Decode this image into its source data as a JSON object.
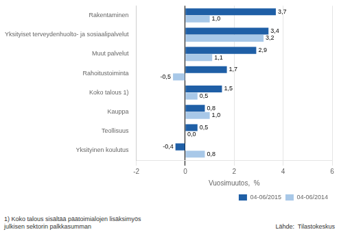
{
  "chart_data": {
    "type": "bar",
    "orientation": "horizontal",
    "categories": [
      "Rakentaminen",
      "Yksityiset terveydenhuolto- ja sosiaalipalvelut",
      "Muut palvelut",
      "Rahoitustoiminta",
      "Koko talous 1)",
      "Kauppa",
      "Teollisuus",
      "Yksityinen koulutus"
    ],
    "series": [
      {
        "name": "04-06/2015",
        "color": "#1f5fa6",
        "values": [
          3.7,
          3.4,
          2.9,
          1.7,
          1.5,
          0.8,
          0.5,
          -0.4
        ],
        "value_labels": [
          "3,7",
          "3,4",
          "2,9",
          "1,7",
          "1,5",
          "0,8",
          "0,5",
          "-0,4"
        ]
      },
      {
        "name": "04-06/2014",
        "color": "#a8c8e8",
        "values": [
          1.0,
          3.2,
          1.1,
          -0.5,
          0.5,
          1.0,
          0.0,
          0.8
        ],
        "value_labels": [
          "1,0",
          "3,2",
          "1,1",
          "-0,5",
          "0,5",
          "1,0",
          "0,0",
          "0,8"
        ]
      }
    ],
    "xlabel": "Vuosimuutos,  %",
    "xlim": [
      -2,
      6
    ],
    "xticks": [
      -2,
      0,
      2,
      4,
      6
    ],
    "grid": true,
    "legend": "lower right",
    "data_labels": true,
    "annotations": [
      "1) Koko talous sisältää päätoimialojen lisäksimyös\njulkisen sektorin palkkasumman",
      "Lähde:  Tilastokeskus"
    ]
  }
}
